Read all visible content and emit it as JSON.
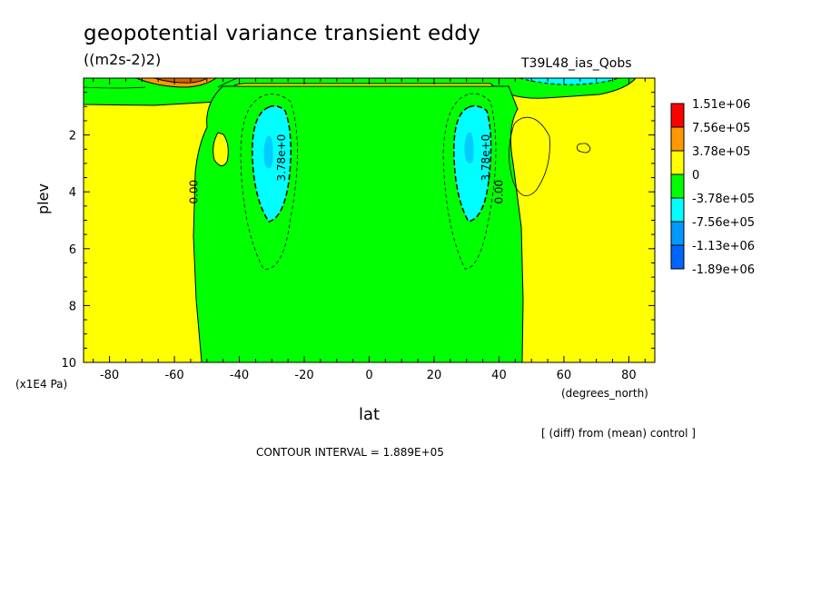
{
  "header": {
    "title": "geopotential variance transient eddy",
    "units": "((m2s-2)2)",
    "run_id": "T39L48_ias_Qobs"
  },
  "footer": {
    "diff_note": "[ (diff) from (mean) control ]",
    "contour_interval": "CONTOUR INTERVAL = 1.889E+05"
  },
  "chart_data": {
    "type": "heatmap",
    "title": "geopotential variance transient eddy",
    "subtitle": "((m2s-2)2)",
    "xlabel": "lat",
    "xunits": "(degrees_north)",
    "ylabel": "plev",
    "yunits": "(x1E4 Pa)",
    "xlim": [
      -88,
      88
    ],
    "ylim": [
      0,
      10
    ],
    "y_inverted": true,
    "x_ticks": [
      -80,
      -60,
      -40,
      -20,
      0,
      20,
      40,
      60,
      80
    ],
    "y_ticks": [
      2,
      4,
      6,
      8,
      10
    ],
    "contour_interval": 188900,
    "legend": {
      "placement": "right",
      "levels": [
        "1.51e+06",
        "7.56e+05",
        "3.78e+05",
        "0",
        "-3.78e+05",
        "-7.56e+05",
        "-1.13e+06",
        "-1.89e+06"
      ],
      "colors": [
        "#ff0000",
        "#ff9900",
        "#ffff00",
        "#00ff00",
        "#00ffff",
        "#0099ff",
        "#0066ff"
      ]
    },
    "contour_labels": [
      {
        "text": "0.00",
        "lat": -54,
        "plev": 4.0
      },
      {
        "text": "3.78e+0",
        "lat": -27,
        "plev": 2.8
      },
      {
        "text": "3.78e+0",
        "lat": 36,
        "plev": 2.8
      },
      {
        "text": "0.00",
        "lat": 40,
        "plev": 4.0
      }
    ],
    "regions": {
      "positive_color": "#ffff00",
      "negative_color": "#00ff00",
      "minima": [
        {
          "lat": -31,
          "plev": 2.5,
          "min_level": "-7.56e+05"
        },
        {
          "lat": 31,
          "plev": 2.5,
          "min_level": "-7.56e+05"
        }
      ],
      "maximum": {
        "lat": -65,
        "plev": 0.1,
        "max_level": "7.56e+05"
      }
    }
  }
}
